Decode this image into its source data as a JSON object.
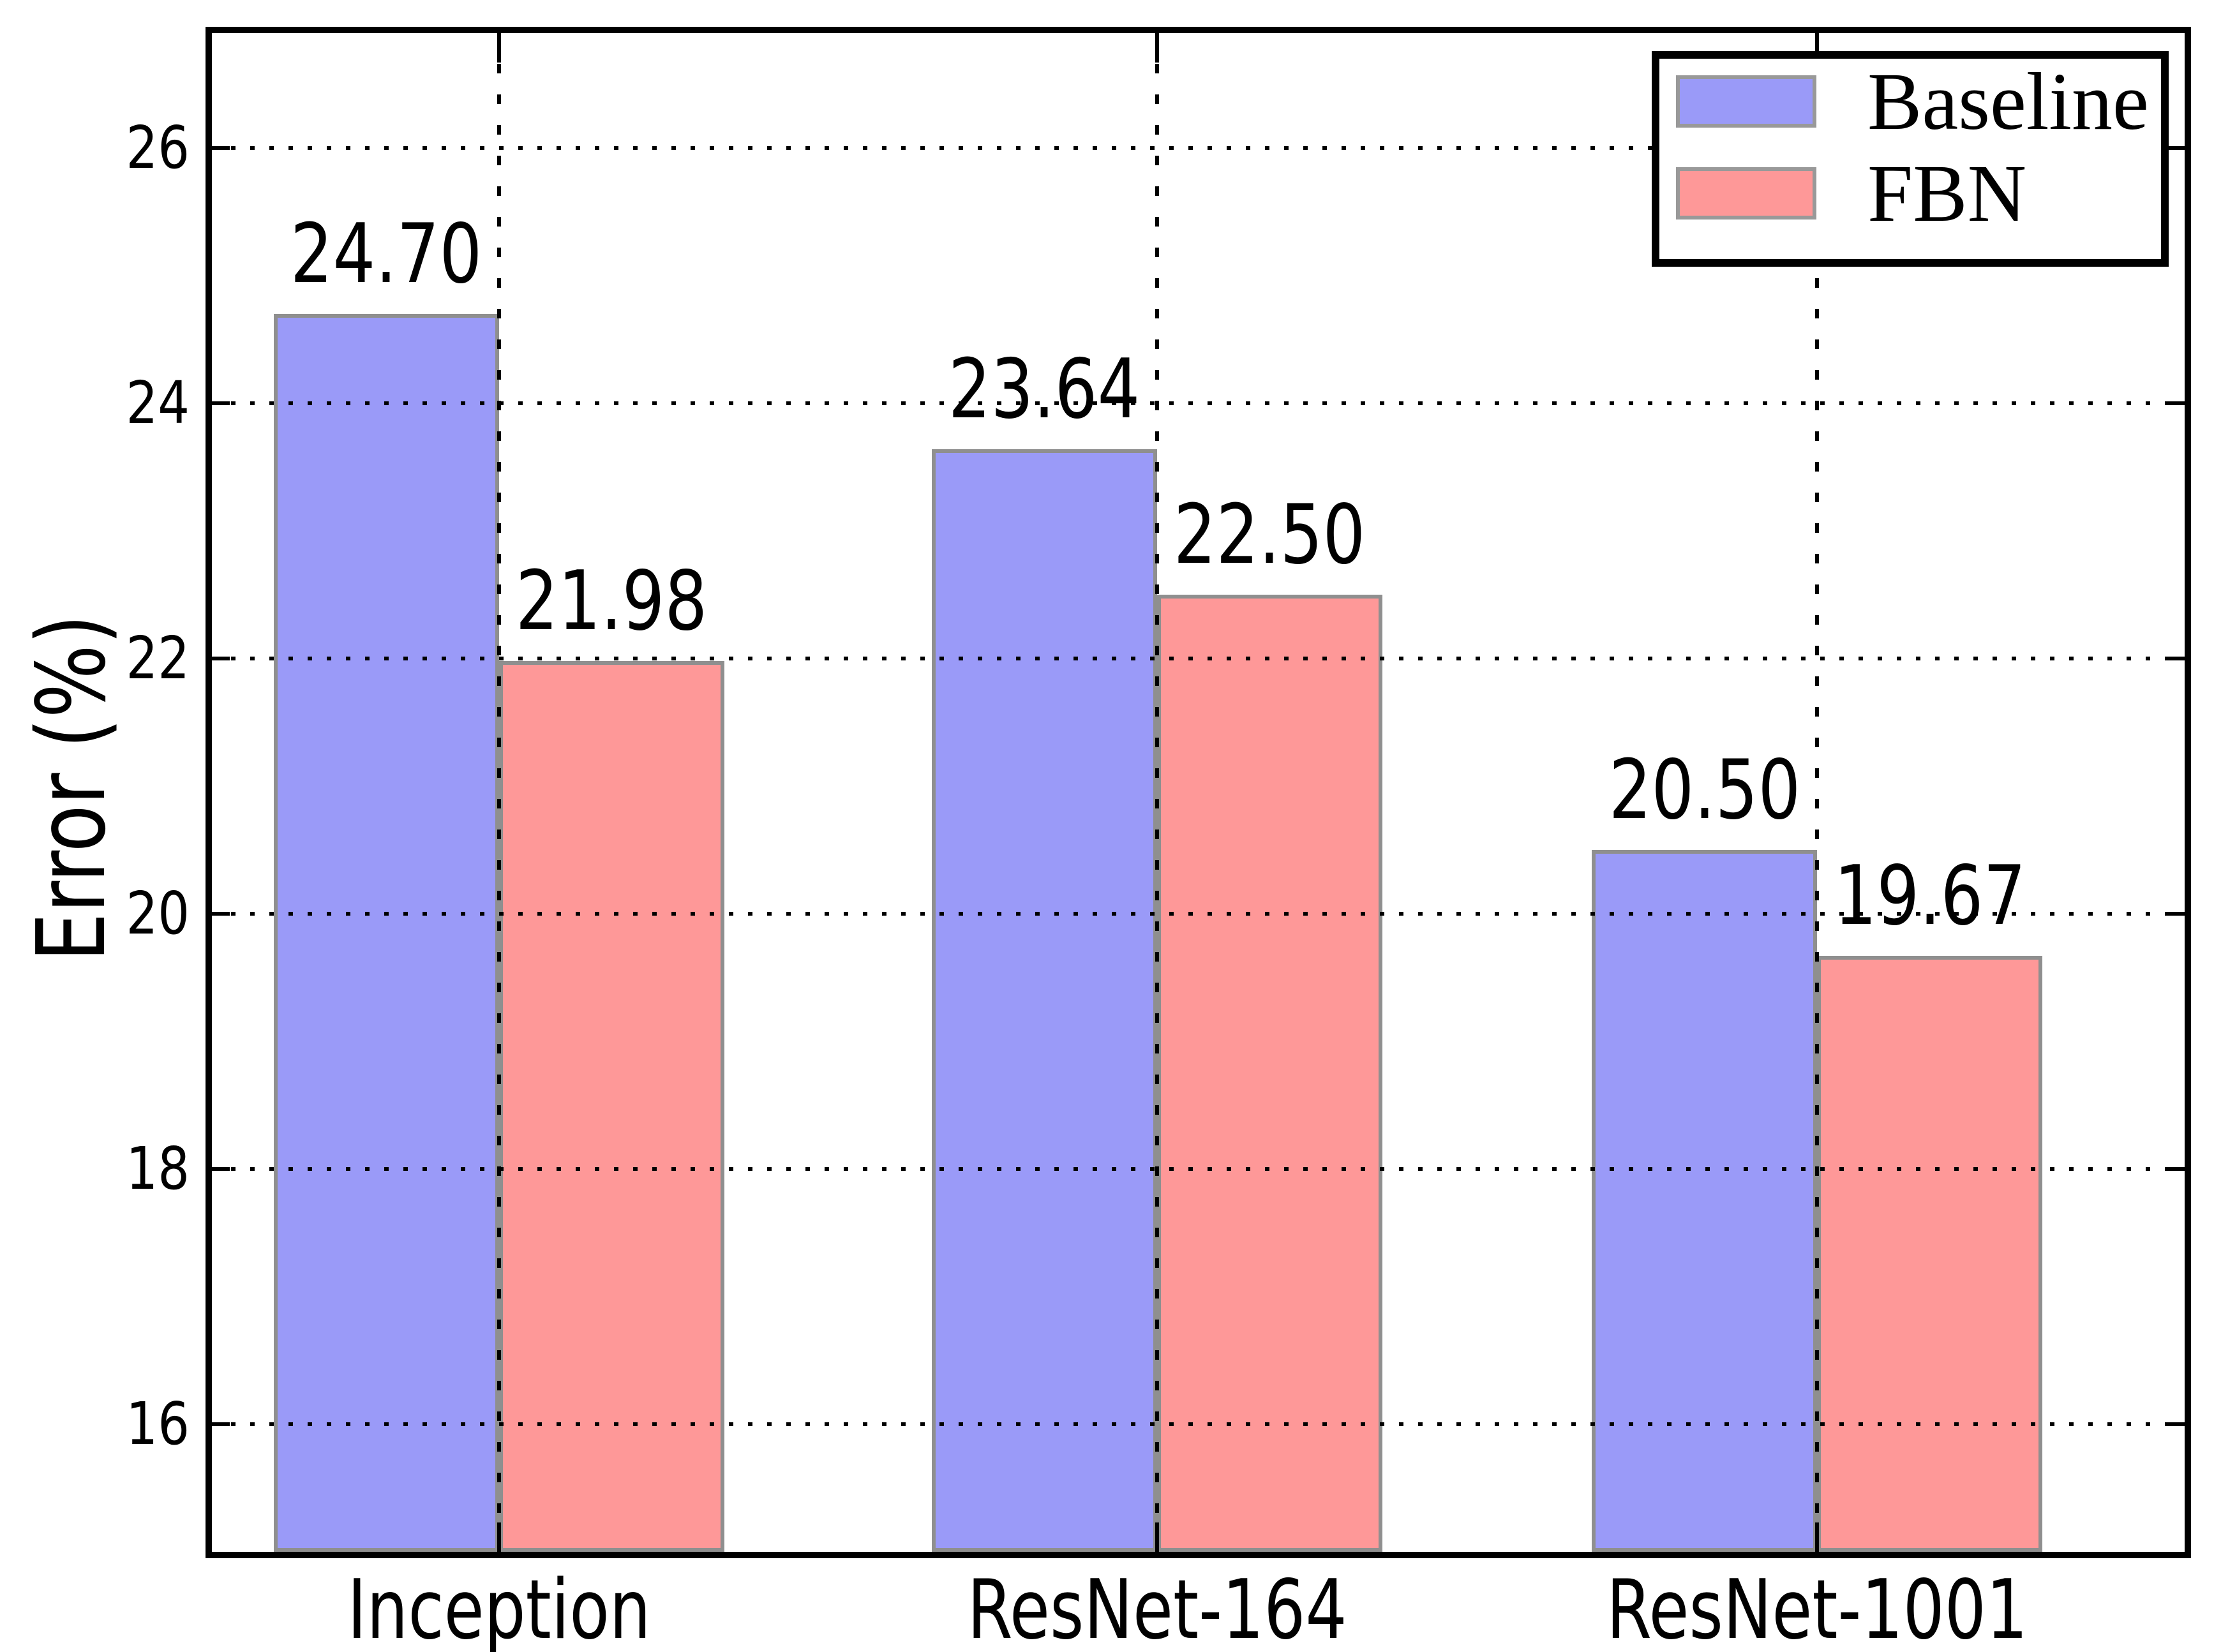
{
  "chart_data": {
    "type": "bar",
    "title": "",
    "categories": [
      "Inception",
      "ResNet-164",
      "ResNet-1001"
    ],
    "series": [
      {
        "name": "Baseline",
        "values": [
          24.7,
          23.64,
          20.5
        ],
        "color": "#9a9af8"
      },
      {
        "name": "FBN",
        "values": [
          21.98,
          22.5,
          19.67
        ],
        "color": "#fe9898"
      }
    ],
    "value_label_decimals": 2,
    "xlabel": "",
    "ylabel": "Error (%)",
    "ylim": [
      15.0,
      26.9
    ],
    "yticks": [
      16,
      18,
      20,
      22,
      24,
      26
    ],
    "grid": "dotted black, both axes, drawn above bars",
    "legend": {
      "position": "upper right",
      "entries": [
        "Baseline",
        "FBN"
      ]
    },
    "colors": {
      "bar_edge": "#8f8f8f",
      "axis": "#000000",
      "grid": "#000000",
      "background": "#ffffff",
      "text": "#000000"
    }
  }
}
